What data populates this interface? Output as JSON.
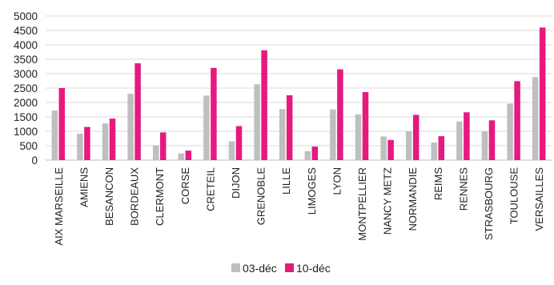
{
  "chart_data": {
    "type": "bar",
    "categories": [
      "AIX MARSEILLE",
      "AMIENS",
      "BESANCON",
      "BORDEAUX",
      "CLERMONT",
      "CORSE",
      "CRETEIL",
      "DIJON",
      "GRENOBLE",
      "LILLE",
      "LIMOGES",
      "LYON",
      "MONTPELLIER",
      "NANCY METZ",
      "NORMANDIE",
      "REIMS",
      "RENNES",
      "STRASBOURG",
      "TOULOUSE",
      "VERSAILLES"
    ],
    "series": [
      {
        "name": "03-déc",
        "color": "#bfbfbf",
        "values": [
          1720,
          920,
          1270,
          2300,
          510,
          230,
          2240,
          650,
          2630,
          1770,
          310,
          1760,
          1590,
          820,
          1000,
          610,
          1340,
          1000,
          1960,
          2880
        ]
      },
      {
        "name": "10-déc",
        "color": "#e6197e",
        "values": [
          2500,
          1150,
          1440,
          3360,
          960,
          330,
          3200,
          1180,
          3810,
          2250,
          470,
          3150,
          2360,
          700,
          1570,
          830,
          1660,
          1380,
          2740,
          4600
        ]
      }
    ],
    "yticks": [
      "0",
      "500",
      "1000",
      "1500",
      "2000",
      "2500",
      "3000",
      "3500",
      "4000",
      "4500",
      "5000"
    ],
    "ylim": [
      0,
      5000
    ],
    "grid": true,
    "legend_position": "bottom",
    "title": "",
    "xlabel": "",
    "ylabel": ""
  }
}
